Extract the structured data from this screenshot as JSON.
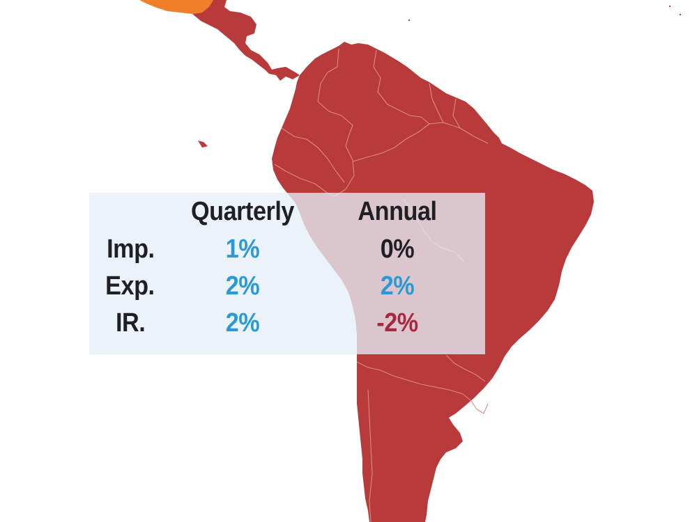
{
  "table": {
    "columns": [
      "Quarterly",
      "Annual"
    ],
    "rows": [
      {
        "label": "Imp.",
        "quarterly": "1%",
        "annual": "0%"
      },
      {
        "label": "Exp.",
        "quarterly": "2%",
        "annual": "2%"
      },
      {
        "label": "IR.",
        "quarterly": "2%",
        "annual": "-2%"
      }
    ]
  },
  "colors": {
    "region_fill": "#b93a3a",
    "mexico_fill": "#ef7f2a",
    "country_border": "#d98a86",
    "positive_value": "#2a9ad6",
    "zero_value": "#1f1f24",
    "negative_value": "#a8283f",
    "panel_background": "#e6eef8"
  },
  "value_colors": {
    "quarterly": [
      "#2a9ad6",
      "#2a9ad6",
      "#2a9ad6"
    ],
    "annual": [
      "#1f1f24",
      "#2a9ad6",
      "#a8283f"
    ]
  }
}
